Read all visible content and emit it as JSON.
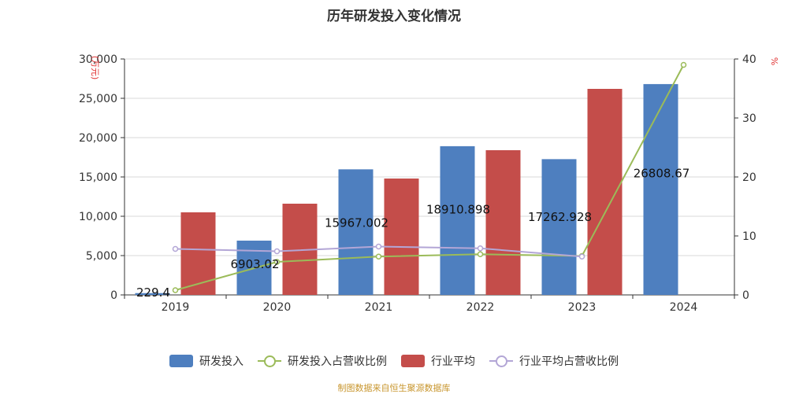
{
  "title": "历年研发投入变化情况",
  "source": "制图数据来自恒生聚源数据库",
  "left_unit": "(万元)",
  "right_unit": "%",
  "colors": {
    "rd_bar": "#4e7fbf",
    "industry_bar": "#c44d4a",
    "rd_ratio_line": "#9bbb59",
    "industry_ratio_line": "#b3a6d6",
    "source_text": "#c8962e",
    "unit_text": "#e03030"
  },
  "legend": [
    {
      "label": "研发投入",
      "kind": "bar",
      "color": "#4e7fbf"
    },
    {
      "label": "研发投入占营收比例",
      "kind": "line",
      "color": "#9bbb59"
    },
    {
      "label": "行业平均",
      "kind": "bar",
      "color": "#c44d4a"
    },
    {
      "label": "行业平均占营收比例",
      "kind": "line",
      "color": "#b3a6d6"
    }
  ],
  "chart_data": {
    "type": "bar",
    "categories": [
      "2019",
      "2020",
      "2021",
      "2022",
      "2023",
      "2024"
    ],
    "y_left": {
      "ylim": [
        0,
        30000
      ],
      "ticks": [
        "0",
        "5,000",
        "10,000",
        "15,000",
        "20,000",
        "25,000",
        "30,000"
      ],
      "tick_values": [
        0,
        5000,
        10000,
        15000,
        20000,
        25000,
        30000
      ]
    },
    "y_right": {
      "ylim": [
        0,
        40
      ],
      "ticks": [
        "0",
        "10",
        "20",
        "30",
        "40"
      ],
      "tick_values": [
        0,
        10,
        20,
        30,
        40
      ]
    },
    "series": [
      {
        "name": "研发投入",
        "type": "bar",
        "axis": "left",
        "values": [
          229.4,
          6903.02,
          15967.002,
          18910.898,
          17262.928,
          26808.67
        ],
        "labels": [
          "229.4",
          "6903.02",
          "15967.002",
          "18910.898",
          "17262.928",
          "26808.67"
        ]
      },
      {
        "name": "行业平均",
        "type": "bar",
        "axis": "left",
        "values": [
          10500,
          11600,
          14800,
          18400,
          26200,
          null
        ]
      },
      {
        "name": "研发投入占营收比例",
        "type": "line",
        "axis": "right",
        "values": [
          0.8,
          5.6,
          6.5,
          6.9,
          6.6,
          39.0
        ]
      },
      {
        "name": "行业平均占营收比例",
        "type": "line",
        "axis": "right",
        "values": [
          7.8,
          7.4,
          8.2,
          7.9,
          6.5,
          null
        ]
      }
    ]
  }
}
